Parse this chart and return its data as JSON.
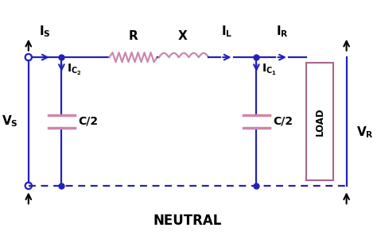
{
  "bg_color": "#ffffff",
  "blue": "#2222bb",
  "pink": "#cc88aa",
  "line_color": "#2222bb",
  "neutral_text": "NEUTRAL",
  "r_label": "R",
  "x_label": "X",
  "c2_label": "C/2",
  "load_label": "LOAD"
}
